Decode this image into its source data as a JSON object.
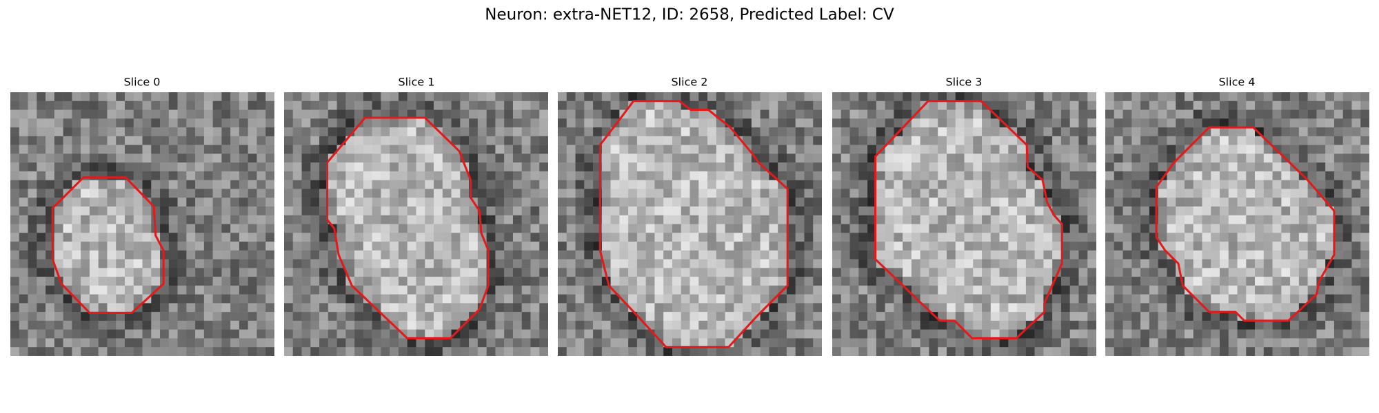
{
  "title": "Neuron: extra-NET12, ID: 2658, Predicted Label: CV",
  "panels": [
    {
      "title": "Slice 0"
    },
    {
      "title": "Slice 1"
    },
    {
      "title": "Slice 2"
    },
    {
      "title": "Slice 3"
    },
    {
      "title": "Slice 4"
    }
  ]
}
